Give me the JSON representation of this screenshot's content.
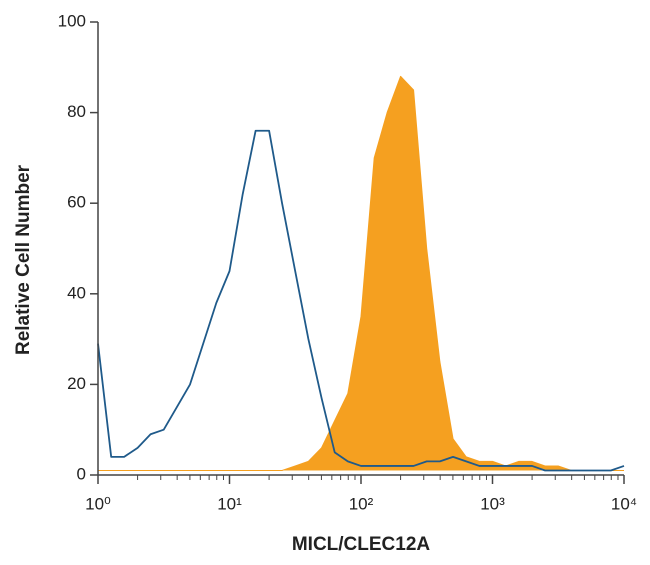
{
  "chart_data": {
    "type": "histogram-overlay",
    "xlabel": "MICL/CLEC12A",
    "ylabel": "Relative Cell Number",
    "xscale": "log",
    "xlim": [
      1,
      10000
    ],
    "ylim": [
      0,
      100
    ],
    "xticks": [
      {
        "value": 1,
        "label": "10⁰"
      },
      {
        "value": 10,
        "label": "10¹"
      },
      {
        "value": 100,
        "label": "10²"
      },
      {
        "value": 1000,
        "label": "10³"
      },
      {
        "value": 10000,
        "label": "10⁴"
      }
    ],
    "yticks": [
      0,
      20,
      40,
      60,
      80,
      100
    ],
    "x": [
      1,
      1.26,
      1.58,
      2,
      2.51,
      3.16,
      3.98,
      5.01,
      6.31,
      7.94,
      10,
      12.6,
      15.8,
      20,
      25.1,
      31.6,
      39.8,
      50.1,
      63.1,
      79.4,
      100,
      126,
      158,
      200,
      251,
      316,
      398,
      501,
      631,
      794,
      1000,
      1260,
      1580,
      2000,
      2510,
      3160,
      3980,
      5010,
      6310,
      7940,
      10000
    ],
    "series": [
      {
        "color": "#f5a020",
        "fill": true,
        "values": [
          1,
          1,
          1,
          1,
          1,
          1,
          1,
          1,
          1,
          1,
          1,
          1,
          1,
          1,
          1,
          2,
          3,
          6,
          12,
          18,
          35,
          70,
          80,
          88,
          85,
          50,
          25,
          8,
          4,
          3,
          3,
          2,
          3,
          3,
          2,
          2,
          1,
          1,
          1,
          1,
          1
        ]
      },
      {
        "color": "#1f5a8a",
        "fill": false,
        "values": [
          29,
          4,
          4,
          6,
          9,
          10,
          15,
          20,
          29,
          38,
          45,
          62,
          76,
          76,
          60,
          45,
          30,
          17,
          5,
          3,
          2,
          2,
          2,
          2,
          2,
          3,
          3,
          4,
          3,
          2,
          2,
          2,
          2,
          2,
          1,
          1,
          1,
          1,
          1,
          1,
          2
        ]
      }
    ]
  }
}
